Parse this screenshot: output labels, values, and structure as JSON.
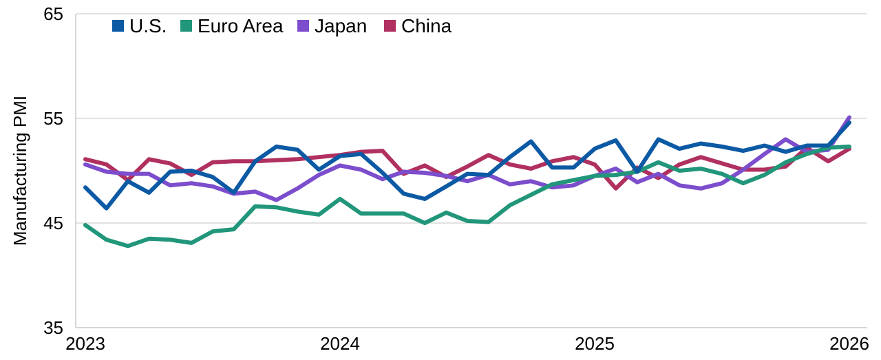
{
  "chart_data": {
    "type": "line",
    "ylabel": "Manufacturing PMI",
    "xlabel": "",
    "ylim": [
      35,
      65
    ],
    "yticks": [
      "65",
      "55",
      "45",
      "35"
    ],
    "xlim": [
      2023,
      2026
    ],
    "xticks": [
      "2023",
      "2024",
      "2025",
      "2026"
    ],
    "grid": "horizontal",
    "legend_position": "top-left",
    "series": [
      {
        "name": "China",
        "color": "#b03060",
        "values": [
          [
            2023.0,
            51.1
          ],
          [
            2023.083,
            50.6
          ],
          [
            2023.167,
            49.1
          ],
          [
            2023.25,
            51.1
          ],
          [
            2023.333,
            50.7
          ],
          [
            2023.417,
            49.6
          ],
          [
            2023.5,
            50.8
          ],
          [
            2023.583,
            50.9
          ],
          [
            2023.667,
            50.9
          ],
          [
            2023.75,
            51.0
          ],
          [
            2023.833,
            51.1
          ],
          [
            2023.917,
            51.3
          ],
          [
            2024.0,
            51.5
          ],
          [
            2024.083,
            51.8
          ],
          [
            2024.167,
            51.9
          ],
          [
            2024.25,
            49.7
          ],
          [
            2024.333,
            50.5
          ],
          [
            2024.417,
            49.4
          ],
          [
            2024.5,
            50.4
          ],
          [
            2024.583,
            51.5
          ],
          [
            2024.667,
            50.6
          ],
          [
            2024.75,
            50.2
          ],
          [
            2024.833,
            50.9
          ],
          [
            2024.917,
            51.3
          ],
          [
            2025.0,
            50.6
          ],
          [
            2025.083,
            48.3
          ],
          [
            2025.167,
            50.3
          ],
          [
            2025.25,
            49.3
          ],
          [
            2025.333,
            50.6
          ],
          [
            2025.417,
            51.3
          ],
          [
            2025.5,
            50.7
          ],
          [
            2025.583,
            50.1
          ],
          [
            2025.667,
            50.1
          ],
          [
            2025.75,
            50.4
          ],
          [
            2025.833,
            52.2
          ],
          [
            2025.917,
            50.9
          ],
          [
            2026.0,
            52.1
          ]
        ]
      },
      {
        "name": "Japan",
        "color": "#7c4dcc",
        "values": [
          [
            2023.0,
            50.6
          ],
          [
            2023.083,
            49.9
          ],
          [
            2023.167,
            49.7
          ],
          [
            2023.25,
            49.7
          ],
          [
            2023.333,
            48.6
          ],
          [
            2023.417,
            48.8
          ],
          [
            2023.5,
            48.5
          ],
          [
            2023.583,
            47.8
          ],
          [
            2023.667,
            48.0
          ],
          [
            2023.75,
            47.2
          ],
          [
            2023.833,
            48.3
          ],
          [
            2023.917,
            49.6
          ],
          [
            2024.0,
            50.5
          ],
          [
            2024.083,
            50.1
          ],
          [
            2024.167,
            49.2
          ],
          [
            2024.25,
            49.9
          ],
          [
            2024.333,
            49.8
          ],
          [
            2024.417,
            49.5
          ],
          [
            2024.5,
            49.0
          ],
          [
            2024.583,
            49.6
          ],
          [
            2024.667,
            48.7
          ],
          [
            2024.75,
            49.0
          ],
          [
            2024.833,
            48.4
          ],
          [
            2024.917,
            48.6
          ],
          [
            2025.0,
            49.5
          ],
          [
            2025.083,
            50.2
          ],
          [
            2025.167,
            48.9
          ],
          [
            2025.25,
            49.7
          ],
          [
            2025.333,
            48.6
          ],
          [
            2025.417,
            48.3
          ],
          [
            2025.5,
            48.8
          ],
          [
            2025.583,
            50.1
          ],
          [
            2025.667,
            51.6
          ],
          [
            2025.75,
            53.0
          ],
          [
            2025.833,
            51.8
          ],
          [
            2025.917,
            52.0
          ],
          [
            2026.0,
            55.1
          ]
        ]
      },
      {
        "name": "Euro Area",
        "color": "#21967a",
        "values": [
          [
            2023.0,
            44.8
          ],
          [
            2023.083,
            43.4
          ],
          [
            2023.167,
            42.8
          ],
          [
            2023.25,
            43.5
          ],
          [
            2023.333,
            43.4
          ],
          [
            2023.417,
            43.1
          ],
          [
            2023.5,
            44.2
          ],
          [
            2023.583,
            44.4
          ],
          [
            2023.667,
            46.6
          ],
          [
            2023.75,
            46.5
          ],
          [
            2023.833,
            46.1
          ],
          [
            2023.917,
            45.8
          ],
          [
            2024.0,
            47.3
          ],
          [
            2024.083,
            45.9
          ],
          [
            2024.167,
            45.9
          ],
          [
            2024.25,
            45.9
          ],
          [
            2024.333,
            45.0
          ],
          [
            2024.417,
            46.0
          ],
          [
            2024.5,
            45.2
          ],
          [
            2024.583,
            45.1
          ],
          [
            2024.667,
            46.7
          ],
          [
            2024.75,
            47.7
          ],
          [
            2024.833,
            48.7
          ],
          [
            2024.917,
            49.1
          ],
          [
            2025.0,
            49.5
          ],
          [
            2025.083,
            49.6
          ],
          [
            2025.167,
            49.9
          ],
          [
            2025.25,
            50.8
          ],
          [
            2025.333,
            50.0
          ],
          [
            2025.417,
            50.2
          ],
          [
            2025.5,
            49.7
          ],
          [
            2025.583,
            48.8
          ],
          [
            2025.667,
            49.6
          ],
          [
            2025.75,
            50.8
          ],
          [
            2025.833,
            51.6
          ],
          [
            2025.917,
            52.2
          ],
          [
            2026.0,
            52.3
          ]
        ]
      },
      {
        "name": "U.S.",
        "color": "#0c59a4",
        "values": [
          [
            2023.0,
            48.4
          ],
          [
            2023.083,
            46.4
          ],
          [
            2023.167,
            49.0
          ],
          [
            2023.25,
            47.9
          ],
          [
            2023.333,
            49.9
          ],
          [
            2023.417,
            50.0
          ],
          [
            2023.5,
            49.4
          ],
          [
            2023.583,
            47.9
          ],
          [
            2023.667,
            50.9
          ],
          [
            2023.75,
            52.3
          ],
          [
            2023.833,
            52.0
          ],
          [
            2023.917,
            50.1
          ],
          [
            2024.0,
            51.4
          ],
          [
            2024.083,
            51.6
          ],
          [
            2024.167,
            49.8
          ],
          [
            2024.25,
            47.8
          ],
          [
            2024.333,
            47.3
          ],
          [
            2024.417,
            48.5
          ],
          [
            2024.5,
            49.7
          ],
          [
            2024.583,
            49.6
          ],
          [
            2024.667,
            51.3
          ],
          [
            2024.75,
            52.8
          ],
          [
            2024.833,
            50.3
          ],
          [
            2024.917,
            50.3
          ],
          [
            2025.0,
            52.1
          ],
          [
            2025.083,
            52.9
          ],
          [
            2025.167,
            49.9
          ],
          [
            2025.25,
            53.0
          ],
          [
            2025.333,
            52.1
          ],
          [
            2025.417,
            52.6
          ],
          [
            2025.5,
            52.3
          ],
          [
            2025.583,
            51.9
          ],
          [
            2025.667,
            52.4
          ],
          [
            2025.75,
            51.8
          ],
          [
            2025.833,
            52.4
          ],
          [
            2025.917,
            52.4
          ],
          [
            2026.0,
            54.6
          ]
        ]
      }
    ],
    "legend": [
      {
        "name": "U.S.",
        "color": "#0c59a4"
      },
      {
        "name": "Euro Area",
        "color": "#21967a"
      },
      {
        "name": "Japan",
        "color": "#7c4dcc"
      },
      {
        "name": "China",
        "color": "#b03060"
      }
    ]
  }
}
